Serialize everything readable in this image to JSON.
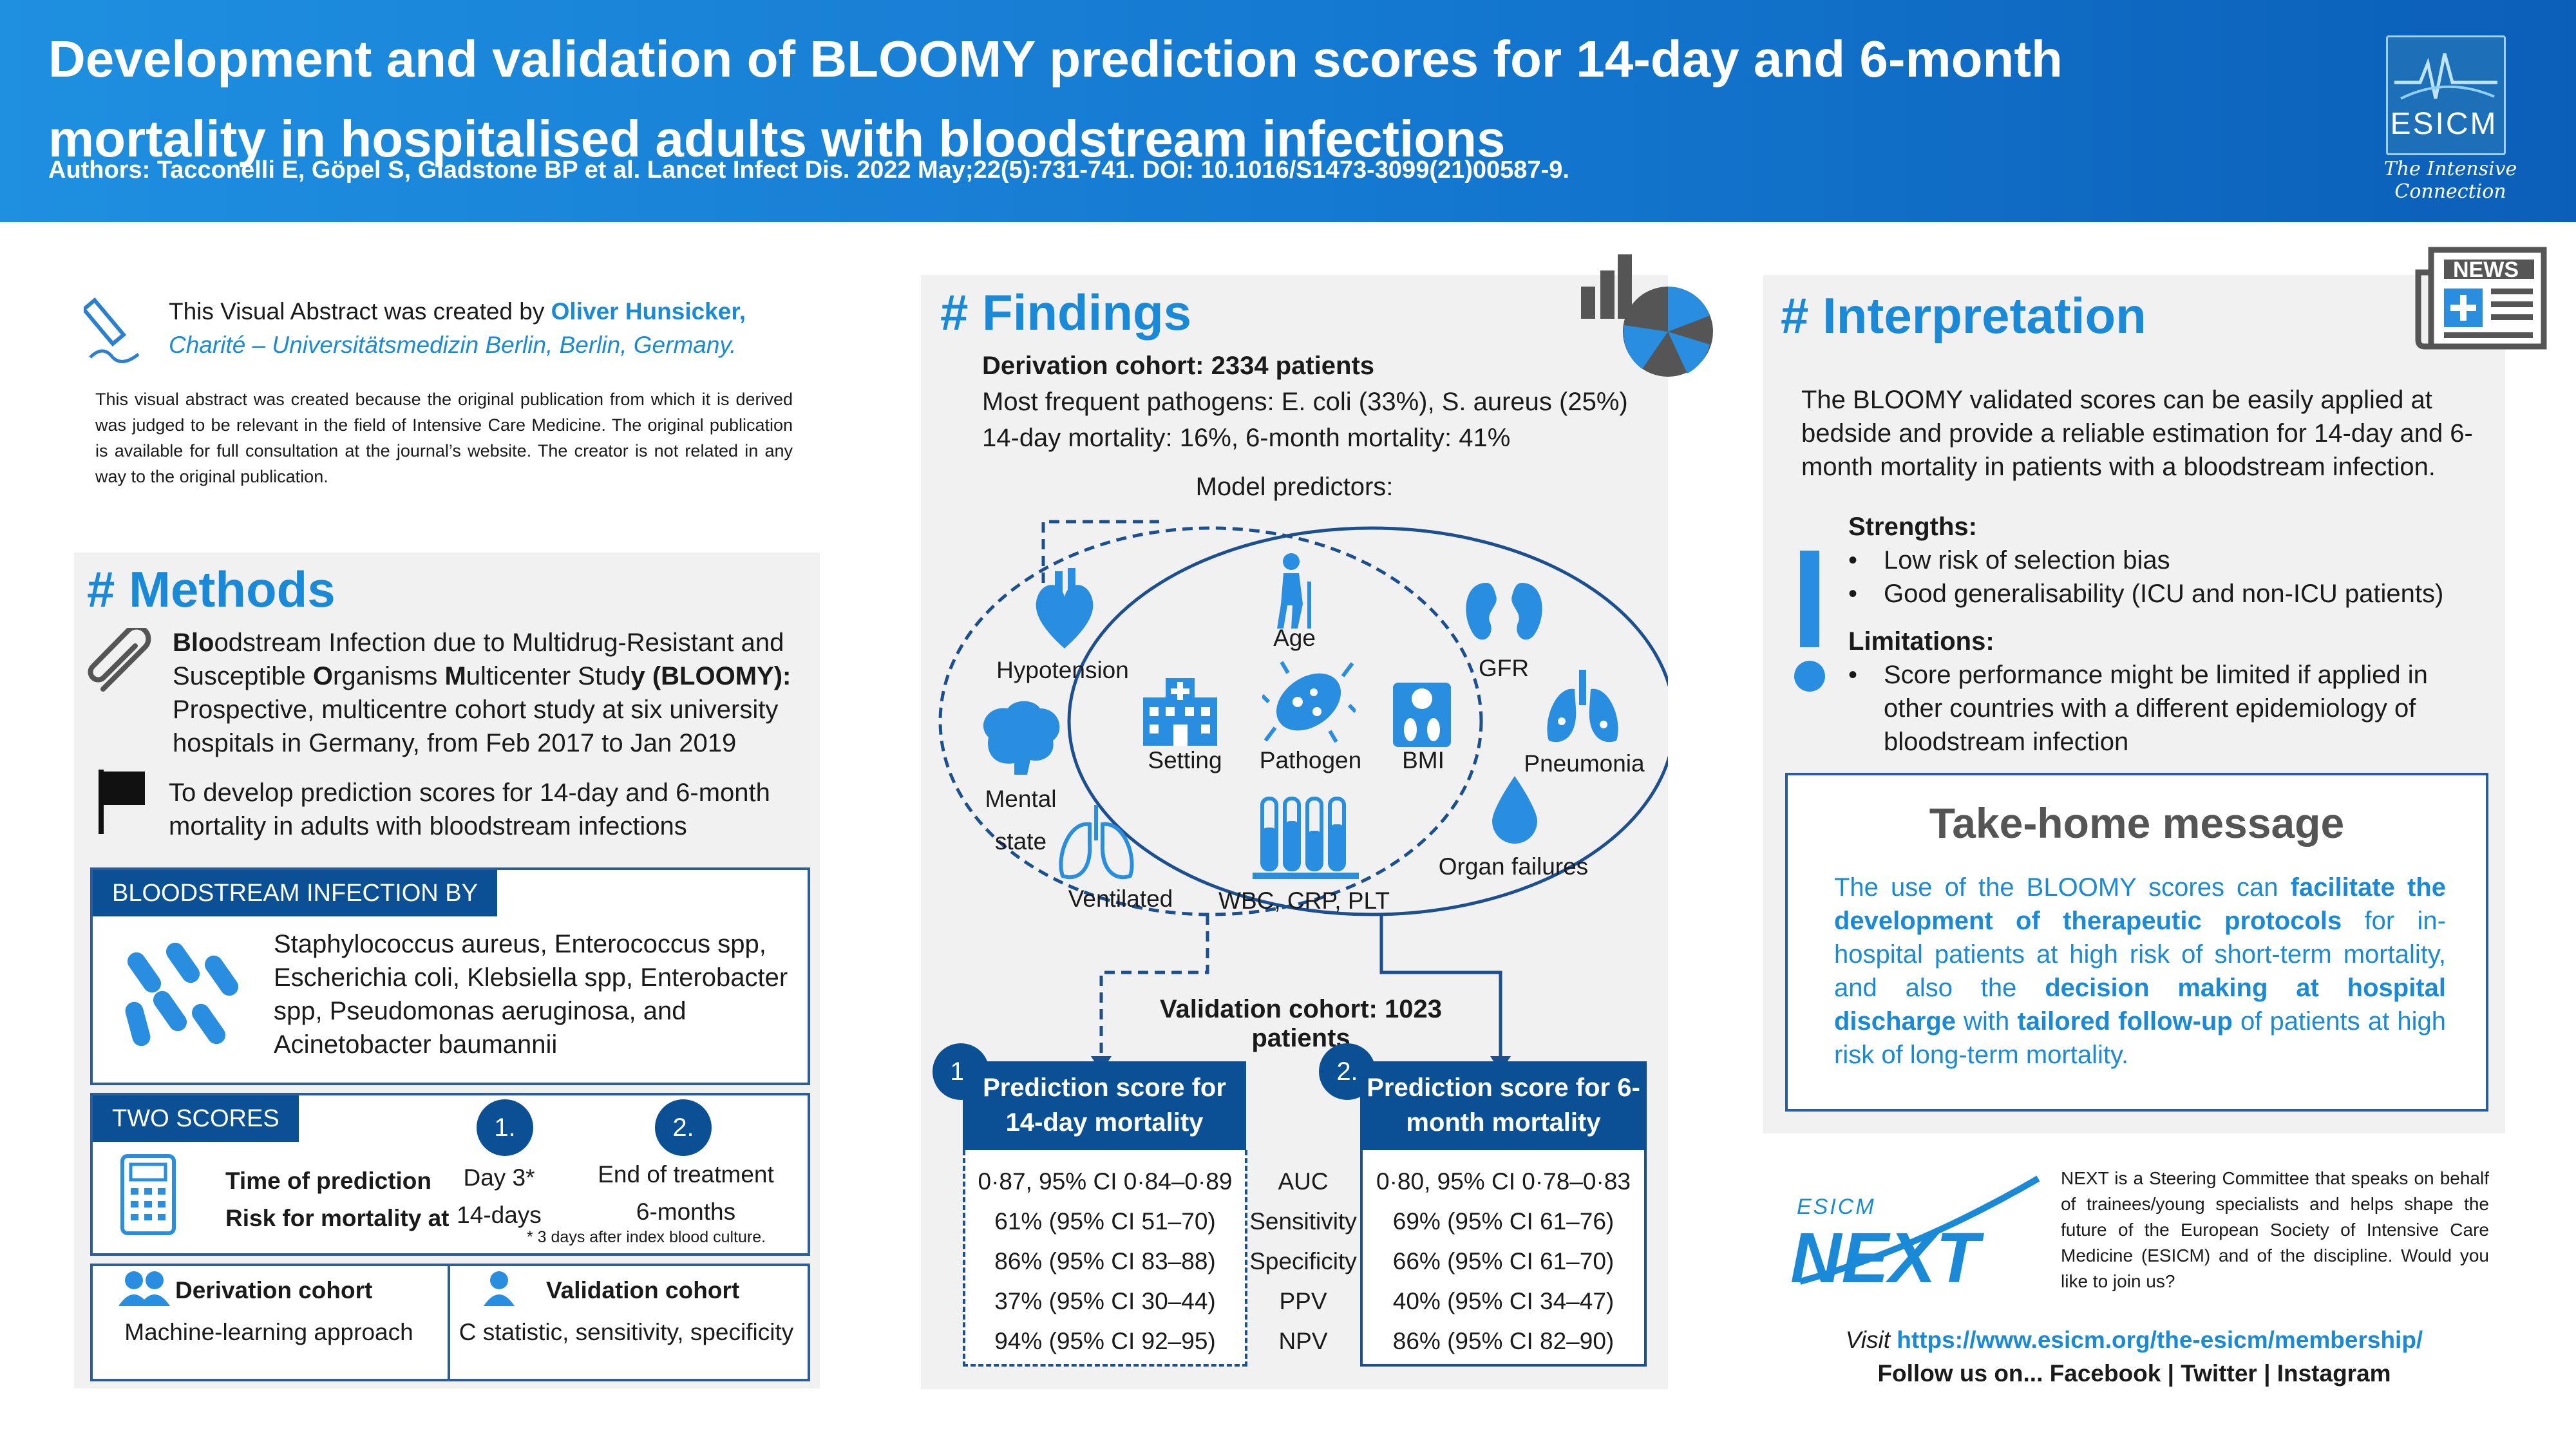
{
  "header": {
    "title": "Development and validation of BLOOMY prediction scores for 14-day and 6-month mortality in hospitalised adults with bloodstream infections",
    "authors": "Authors: Tacconelli E, Göpel S, Gladstone BP et al. Lancet Infect Dis. 2022 May;22(5):731-741. DOI: 10.1016/S1473-3099(21)00587-9.",
    "logo_text": "ESICM",
    "tagline": "The Intensive Connection"
  },
  "creator": {
    "prefix": "This Visual Abstract was created by ",
    "name": "Oliver Hunsicker,",
    "affiliation": "Charité – Universitätsmedizin Berlin, Berlin, Germany.",
    "disclaimer": "This visual abstract was created because the original publication from which it is derived was judged to be relevant in the field of Intensive Care Medicine. The original publication is available for full consultation at the journal’s website. The creator is not related in any way to the original publication."
  },
  "methods": {
    "heading": "# Methods",
    "study_b1": "Blo",
    "study_t1": "odstream Infection due to Multidrug-Resistant and Susceptible ",
    "study_b2": "O",
    "study_t2": "rganisms ",
    "study_b3": "M",
    "study_t3": "ulticenter Stud",
    "study_b4": "y (BLOOMY):",
    "study_desc": "Prospective, multicentre cohort study at six university hospitals in Germany, from Feb 2017 to Jan 2019",
    "aim": "To develop prediction scores for 14-day and 6-month mortality in adults with bloodstream infections",
    "bsi_tag": "BLOODSTREAM INFECTION BY",
    "bsi_text": "Staphylococcus aureus, Enterococcus spp, Escherichia coli, Klebsiella spp, Enterobacter spp, Pseudomonas aeruginosa, and Acinetobacter baumannii",
    "scores_tag": "TWO SCORES",
    "num1": "1.",
    "num2": "2.",
    "time_label": "Time of prediction",
    "risk_label": "Risk for mortality at",
    "day3": "Day 3*",
    "end_treat": "End of treatment",
    "days14": "14-days",
    "months6": "6-months",
    "footnote": "* 3 days after index blood culture.",
    "deriv_title": "Derivation cohort",
    "deriv_text": "Machine-learning approach",
    "valid_title": "Validation cohort",
    "valid_text": "C statistic, sensitivity, specificity"
  },
  "findings": {
    "heading": "# Findings",
    "deriv": "Derivation cohort: 2334 patients",
    "pathogens": "Most frequent pathogens: E. coli (33%), S. aureus (25%)",
    "mortality": "14-day mortality: 16%, 6-month mortality: 41%",
    "predictors_title": "Model predictors:",
    "predictors": {
      "hypotension": "Hypotension",
      "age": "Age",
      "gfr": "GFR",
      "mental1": "Mental",
      "mental2": "state",
      "setting": "Setting",
      "pathogen": "Pathogen",
      "bmi": "BMI",
      "pneumonia": "Pneumonia",
      "ventilated": "Ventilated",
      "labs": "WBC, CRP, PLT",
      "organ": "Organ failures"
    },
    "validation": "Validation cohort: 1023 patients",
    "num1": "1.",
    "num2": "2.",
    "score1": "Prediction score for 14-day mortality",
    "score2": "Prediction score for 6-month mortality",
    "metrics": [
      "AUC",
      "Sensitivity",
      "Specificity",
      "PPV",
      "NPV"
    ],
    "s1": [
      "0·87, 95% CI 0·84–0·89",
      "61%  (95% CI 51–70)",
      "86%  (95% CI 83–88)",
      "37%  (95% CI 30–44)",
      "94%  (95% CI 92–95)"
    ],
    "s2": [
      "0·80, 95% CI 0·78–0·83",
      "69%  (95% CI 61–76)",
      "66%  (95% CI 61–70)",
      "40%  (95% CI 34–47)",
      "86%  (95% CI 82–90)"
    ]
  },
  "interpretation": {
    "heading": "# Interpretation",
    "news": "NEWS",
    "text": "The BLOOMY validated scores can be easily applied at bedside and provide a reliable estimation for 14-day and 6-month mortality in patients with a bloodstream infection.",
    "strengths_title": "Strengths:",
    "strengths": [
      "Low risk of selection bias",
      "Good generalisability (ICU and non-ICU patients)"
    ],
    "limitations_title": "Limitations:",
    "limitation": "Score performance might be limited if applied in other countries with a different epidemiology of bloodstream infection",
    "takehome_title": "Take-home message",
    "th_1": "The use of the BLOOMY scores can ",
    "th_2": "facilitate the development of therapeutic protocols",
    "th_3": " for in-hospital patients at high risk of short-term mortality, and also the ",
    "th_4": "decision making at hospital discharge",
    "th_5": " with ",
    "th_6": "tailored follow-up",
    "th_7": " of patients at high risk of long-term mortality."
  },
  "next": {
    "logo_small": "ESICM",
    "logo_big": "NEXT",
    "text": "NEXT is a Steering Committee that speaks on behalf of trainees/young specialists and helps shape the future of the European Society of Intensive Care Medicine (ESICM) and of the discipline. Would you like to join us?",
    "visit": "Visit ",
    "url": "https://www.esicm.org/the-esicm/membership/",
    "follow": "Follow us on... Facebook | Twitter | Instagram"
  }
}
